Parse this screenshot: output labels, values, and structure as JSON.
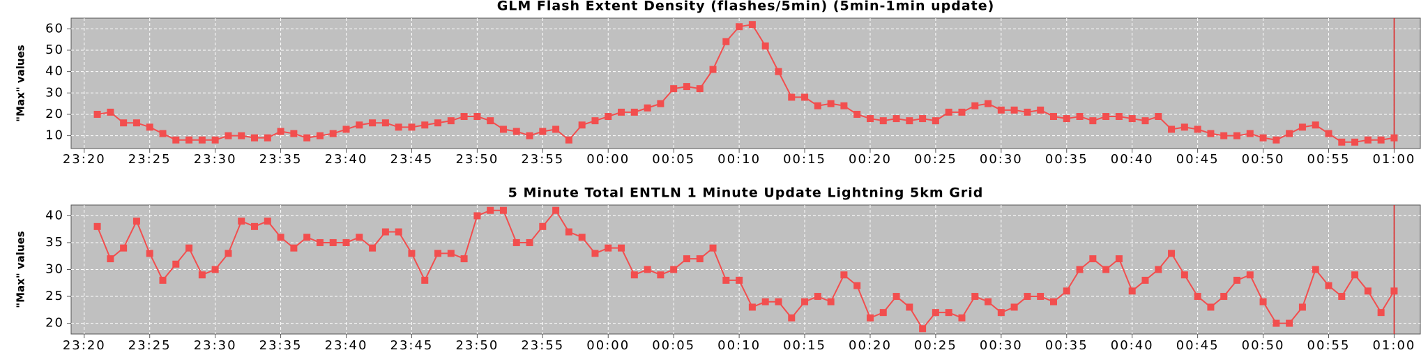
{
  "chart_data": [
    {
      "type": "line",
      "title": "GLM Flash Extent Density (flashes/5min) (5min-1min update)",
      "y_label": "\"Max\" values",
      "x": [
        "23:21",
        "23:22",
        "23:23",
        "23:24",
        "23:25",
        "23:26",
        "23:27",
        "23:28",
        "23:29",
        "23:30",
        "23:31",
        "23:32",
        "23:33",
        "23:34",
        "23:35",
        "23:36",
        "23:37",
        "23:38",
        "23:39",
        "23:40",
        "23:41",
        "23:42",
        "23:43",
        "23:44",
        "23:45",
        "23:46",
        "23:47",
        "23:48",
        "23:49",
        "23:50",
        "23:51",
        "23:52",
        "23:53",
        "23:54",
        "23:55",
        "23:56",
        "23:57",
        "23:58",
        "23:59",
        "00:00",
        "00:01",
        "00:02",
        "00:03",
        "00:04",
        "00:05",
        "00:06",
        "00:07",
        "00:08",
        "00:09",
        "00:10",
        "00:11",
        "00:12",
        "00:13",
        "00:14",
        "00:15",
        "00:16",
        "00:17",
        "00:18",
        "00:19",
        "00:20",
        "00:21",
        "00:22",
        "00:23",
        "00:24",
        "00:25",
        "00:26",
        "00:27",
        "00:28",
        "00:29",
        "00:30",
        "00:31",
        "00:32",
        "00:33",
        "00:34",
        "00:35",
        "00:36",
        "00:37",
        "00:38",
        "00:39",
        "00:40",
        "00:41",
        "00:42",
        "00:43",
        "00:44",
        "00:45",
        "00:46",
        "00:47",
        "00:48",
        "00:49",
        "00:50",
        "00:51",
        "00:52",
        "00:53",
        "00:54",
        "00:55",
        "00:56",
        "00:57",
        "00:58",
        "00:59",
        "01:00"
      ],
      "values": [
        20,
        21,
        16,
        16,
        14,
        11,
        8,
        8,
        8,
        8,
        10,
        10,
        9,
        9,
        12,
        11,
        9,
        10,
        11,
        13,
        15,
        16,
        16,
        14,
        14,
        15,
        16,
        17,
        19,
        19,
        17,
        13,
        12,
        10,
        12,
        13,
        8,
        15,
        17,
        19,
        21,
        21,
        23,
        25,
        32,
        33,
        32,
        41,
        54,
        61,
        62,
        52,
        40,
        28,
        28,
        24,
        25,
        24,
        20,
        18,
        17,
        18,
        17,
        18,
        17,
        21,
        21,
        24,
        25,
        22,
        22,
        21,
        22,
        19,
        18,
        19,
        17,
        19,
        19,
        18,
        17,
        19,
        13,
        14,
        13,
        11,
        10,
        10,
        11,
        9,
        8,
        11,
        14,
        15,
        11,
        7,
        7,
        8,
        8,
        9
      ],
      "color": "#f24e4e",
      "xlim": [
        "23:19",
        "01:02"
      ],
      "xticks": [
        "23:20",
        "23:25",
        "23:30",
        "23:35",
        "23:40",
        "23:45",
        "23:50",
        "23:55",
        "00:00",
        "00:05",
        "00:10",
        "00:15",
        "00:20",
        "00:25",
        "00:30",
        "00:35",
        "00:40",
        "00:45",
        "00:50",
        "00:55",
        "01:00"
      ],
      "ylim": [
        4,
        65
      ],
      "yticks": [
        10,
        20,
        30,
        40,
        50,
        60
      ],
      "grid": true
    },
    {
      "type": "line",
      "title": "5 Minute Total ENTLN 1 Minute Update Lightning 5km Grid",
      "y_label": "\"Max\" values",
      "x": [
        "23:21",
        "23:22",
        "23:23",
        "23:24",
        "23:25",
        "23:26",
        "23:27",
        "23:28",
        "23:29",
        "23:30",
        "23:31",
        "23:32",
        "23:33",
        "23:34",
        "23:35",
        "23:36",
        "23:37",
        "23:38",
        "23:39",
        "23:40",
        "23:41",
        "23:42",
        "23:43",
        "23:44",
        "23:45",
        "23:46",
        "23:47",
        "23:48",
        "23:49",
        "23:50",
        "23:51",
        "23:52",
        "23:53",
        "23:54",
        "23:55",
        "23:56",
        "23:57",
        "23:58",
        "23:59",
        "00:00",
        "00:01",
        "00:02",
        "00:03",
        "00:04",
        "00:05",
        "00:06",
        "00:07",
        "00:08",
        "00:09",
        "00:10",
        "00:11",
        "00:12",
        "00:13",
        "00:14",
        "00:15",
        "00:16",
        "00:17",
        "00:18",
        "00:19",
        "00:20",
        "00:21",
        "00:22",
        "00:23",
        "00:24",
        "00:25",
        "00:26",
        "00:27",
        "00:28",
        "00:29",
        "00:30",
        "00:31",
        "00:32",
        "00:33",
        "00:34",
        "00:35",
        "00:36",
        "00:37",
        "00:38",
        "00:39",
        "00:40",
        "00:41",
        "00:42",
        "00:43",
        "00:44",
        "00:45",
        "00:46",
        "00:47",
        "00:48",
        "00:49",
        "00:50",
        "00:51",
        "00:52",
        "00:53",
        "00:54",
        "00:55",
        "00:56",
        "00:57",
        "00:58",
        "00:59",
        "01:00"
      ],
      "values": [
        38,
        32,
        34,
        39,
        33,
        28,
        31,
        34,
        29,
        30,
        33,
        39,
        38,
        39,
        36,
        34,
        36,
        35,
        35,
        35,
        36,
        34,
        37,
        37,
        33,
        28,
        33,
        33,
        32,
        40,
        41,
        41,
        35,
        35,
        38,
        41,
        37,
        36,
        33,
        34,
        34,
        29,
        30,
        29,
        30,
        32,
        32,
        34,
        28,
        28,
        23,
        24,
        24,
        21,
        24,
        25,
        24,
        29,
        27,
        21,
        22,
        25,
        23,
        19,
        22,
        22,
        21,
        25,
        24,
        22,
        23,
        25,
        25,
        24,
        26,
        30,
        32,
        30,
        32,
        26,
        28,
        30,
        33,
        29,
        25,
        23,
        25,
        28,
        29,
        24,
        20,
        20,
        23,
        30,
        27,
        25,
        29,
        26,
        22,
        26
      ],
      "color": "#f24e4e",
      "xlim": [
        "23:19",
        "01:02"
      ],
      "xticks": [
        "23:20",
        "23:25",
        "23:30",
        "23:35",
        "23:40",
        "23:45",
        "23:50",
        "23:55",
        "00:00",
        "00:05",
        "00:10",
        "00:15",
        "00:20",
        "00:25",
        "00:30",
        "00:35",
        "00:40",
        "00:45",
        "00:50",
        "00:55",
        "01:00"
      ],
      "ylim": [
        18,
        42
      ],
      "yticks": [
        20,
        25,
        30,
        35,
        40
      ],
      "grid": true
    }
  ]
}
